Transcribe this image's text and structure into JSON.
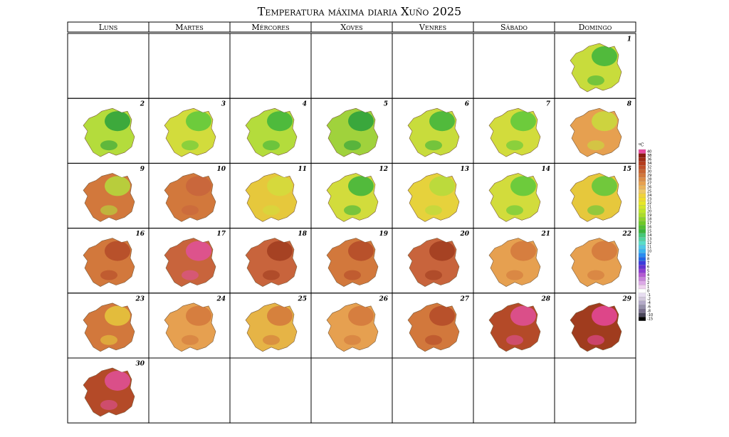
{
  "title": "Temperatura máxima diaria Xuño 2025",
  "weekdays": [
    "Luns",
    "Martes",
    "Mércores",
    "Xoves",
    "Venres",
    "Sábado",
    "Domingo"
  ],
  "days": [
    {
      "day": 1,
      "colors": [
        "#c8dc3c",
        "#3cb43c"
      ]
    },
    {
      "day": 2,
      "colors": [
        "#b4dc3c",
        "#28a03c"
      ]
    },
    {
      "day": 3,
      "colors": [
        "#d2dc3c",
        "#5cc83c"
      ]
    },
    {
      "day": 4,
      "colors": [
        "#b4dc3c",
        "#3cb43c"
      ]
    },
    {
      "day": 5,
      "colors": [
        "#a0d23c",
        "#28a03c"
      ]
    },
    {
      "day": 6,
      "colors": [
        "#c8dc3c",
        "#3cb43c"
      ]
    },
    {
      "day": 7,
      "colors": [
        "#d2dc3c",
        "#5cc83c"
      ]
    },
    {
      "day": 8,
      "colors": [
        "#e6a050",
        "#c8dc3c"
      ]
    },
    {
      "day": 9,
      "colors": [
        "#d2783c",
        "#b4dc3c"
      ]
    },
    {
      "day": 10,
      "colors": [
        "#d2783c",
        "#c8643c"
      ]
    },
    {
      "day": 11,
      "colors": [
        "#e6c83c",
        "#d2dc3c"
      ]
    },
    {
      "day": 12,
      "colors": [
        "#d2dc3c",
        "#3cb43c"
      ]
    },
    {
      "day": 13,
      "colors": [
        "#e6d23c",
        "#b4dc3c"
      ]
    },
    {
      "day": 14,
      "colors": [
        "#d2dc3c",
        "#5cc83c"
      ]
    },
    {
      "day": 15,
      "colors": [
        "#e6c83c",
        "#5cc83c"
      ]
    },
    {
      "day": 16,
      "colors": [
        "#d2783c",
        "#b44a28"
      ]
    },
    {
      "day": 17,
      "colors": [
        "#c8643c",
        "#e0509a"
      ]
    },
    {
      "day": 18,
      "colors": [
        "#c8643c",
        "#a03c1e"
      ]
    },
    {
      "day": 19,
      "colors": [
        "#d2783c",
        "#b44a28"
      ]
    },
    {
      "day": 20,
      "colors": [
        "#c8643c",
        "#a03c1e"
      ]
    },
    {
      "day": 21,
      "colors": [
        "#e6a050",
        "#d2783c"
      ]
    },
    {
      "day": 22,
      "colors": [
        "#e6a050",
        "#d2783c"
      ]
    },
    {
      "day": 23,
      "colors": [
        "#d2783c",
        "#e6c83c"
      ]
    },
    {
      "day": 24,
      "colors": [
        "#e6a050",
        "#d2783c"
      ]
    },
    {
      "day": 25,
      "colors": [
        "#e6b446",
        "#d2783c"
      ]
    },
    {
      "day": 26,
      "colors": [
        "#e6a050",
        "#d2783c"
      ]
    },
    {
      "day": 27,
      "colors": [
        "#d2783c",
        "#b44a28"
      ]
    },
    {
      "day": 28,
      "colors": [
        "#b44a28",
        "#e0509a"
      ]
    },
    {
      "day": 29,
      "colors": [
        "#a03c1e",
        "#e8489c"
      ]
    },
    {
      "day": 30,
      "colors": [
        "#b44a28",
        "#e0509a"
      ]
    }
  ],
  "legend": {
    "unit": "ºC",
    "values": [
      40,
      38,
      36,
      34,
      32,
      30,
      29,
      28,
      27,
      26,
      25,
      24,
      23,
      22,
      21,
      20,
      19,
      18,
      17,
      16,
      15,
      14,
      13,
      12,
      11,
      10,
      9,
      8,
      7,
      6,
      5,
      4,
      3,
      2,
      1,
      0,
      -1,
      -2,
      -4,
      -6,
      -8,
      -10,
      -15
    ],
    "colors": [
      "#e8489c",
      "#8b1a10",
      "#a02a14",
      "#b43c1e",
      "#c0502a",
      "#c86432",
      "#d2783c",
      "#dc8c46",
      "#e6a050",
      "#eab45a",
      "#f0c864",
      "#f0d23c",
      "#f0dc28",
      "#e6e628",
      "#d2e628",
      "#bee628",
      "#aadc28",
      "#8cd228",
      "#6ec828",
      "#50be32",
      "#3cb43c",
      "#46c878",
      "#50d2a0",
      "#5adcc8",
      "#50c8e6",
      "#3cb4f0",
      "#288cf0",
      "#1e64e6",
      "#3c3cdc",
      "#6432d2",
      "#8c3cd2",
      "#b45ad2",
      "#c882dc",
      "#dcaae6",
      "#f0d2f0",
      "#ffffff",
      "#e6dcf0",
      "#d2c8dc",
      "#b4aac8",
      "#9690aa",
      "#786e8c",
      "#4a465a",
      "#000000"
    ]
  }
}
